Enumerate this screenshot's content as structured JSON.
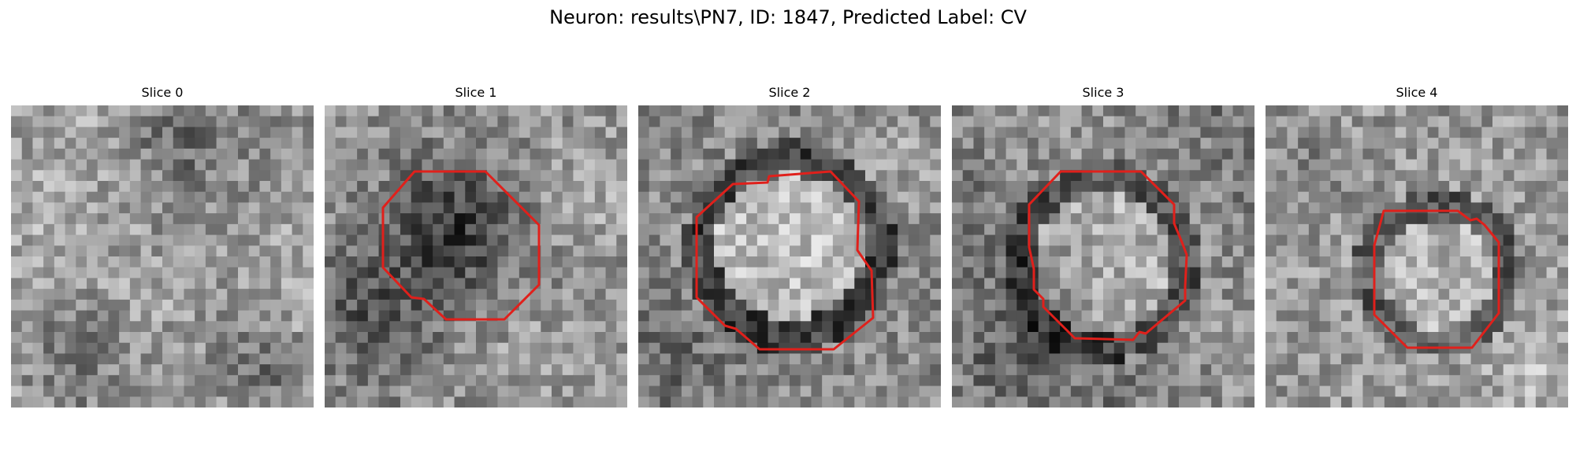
{
  "figure": {
    "title": "Neuron: results\\PN7, ID: 1847, Predicted Label: CV"
  },
  "colors": {
    "background": "#ffffff",
    "contour": "#e0201b",
    "text": "#000000"
  },
  "panels": [
    {
      "title": "Slice 0",
      "has_contour": false,
      "colormap": "grayscale"
    },
    {
      "title": "Slice 1",
      "has_contour": true,
      "colormap": "grayscale"
    },
    {
      "title": "Slice 2",
      "has_contour": true,
      "colormap": "grayscale"
    },
    {
      "title": "Slice 3",
      "has_contour": true,
      "colormap": "grayscale"
    },
    {
      "title": "Slice 4",
      "has_contour": true,
      "colormap": "grayscale"
    }
  ]
}
